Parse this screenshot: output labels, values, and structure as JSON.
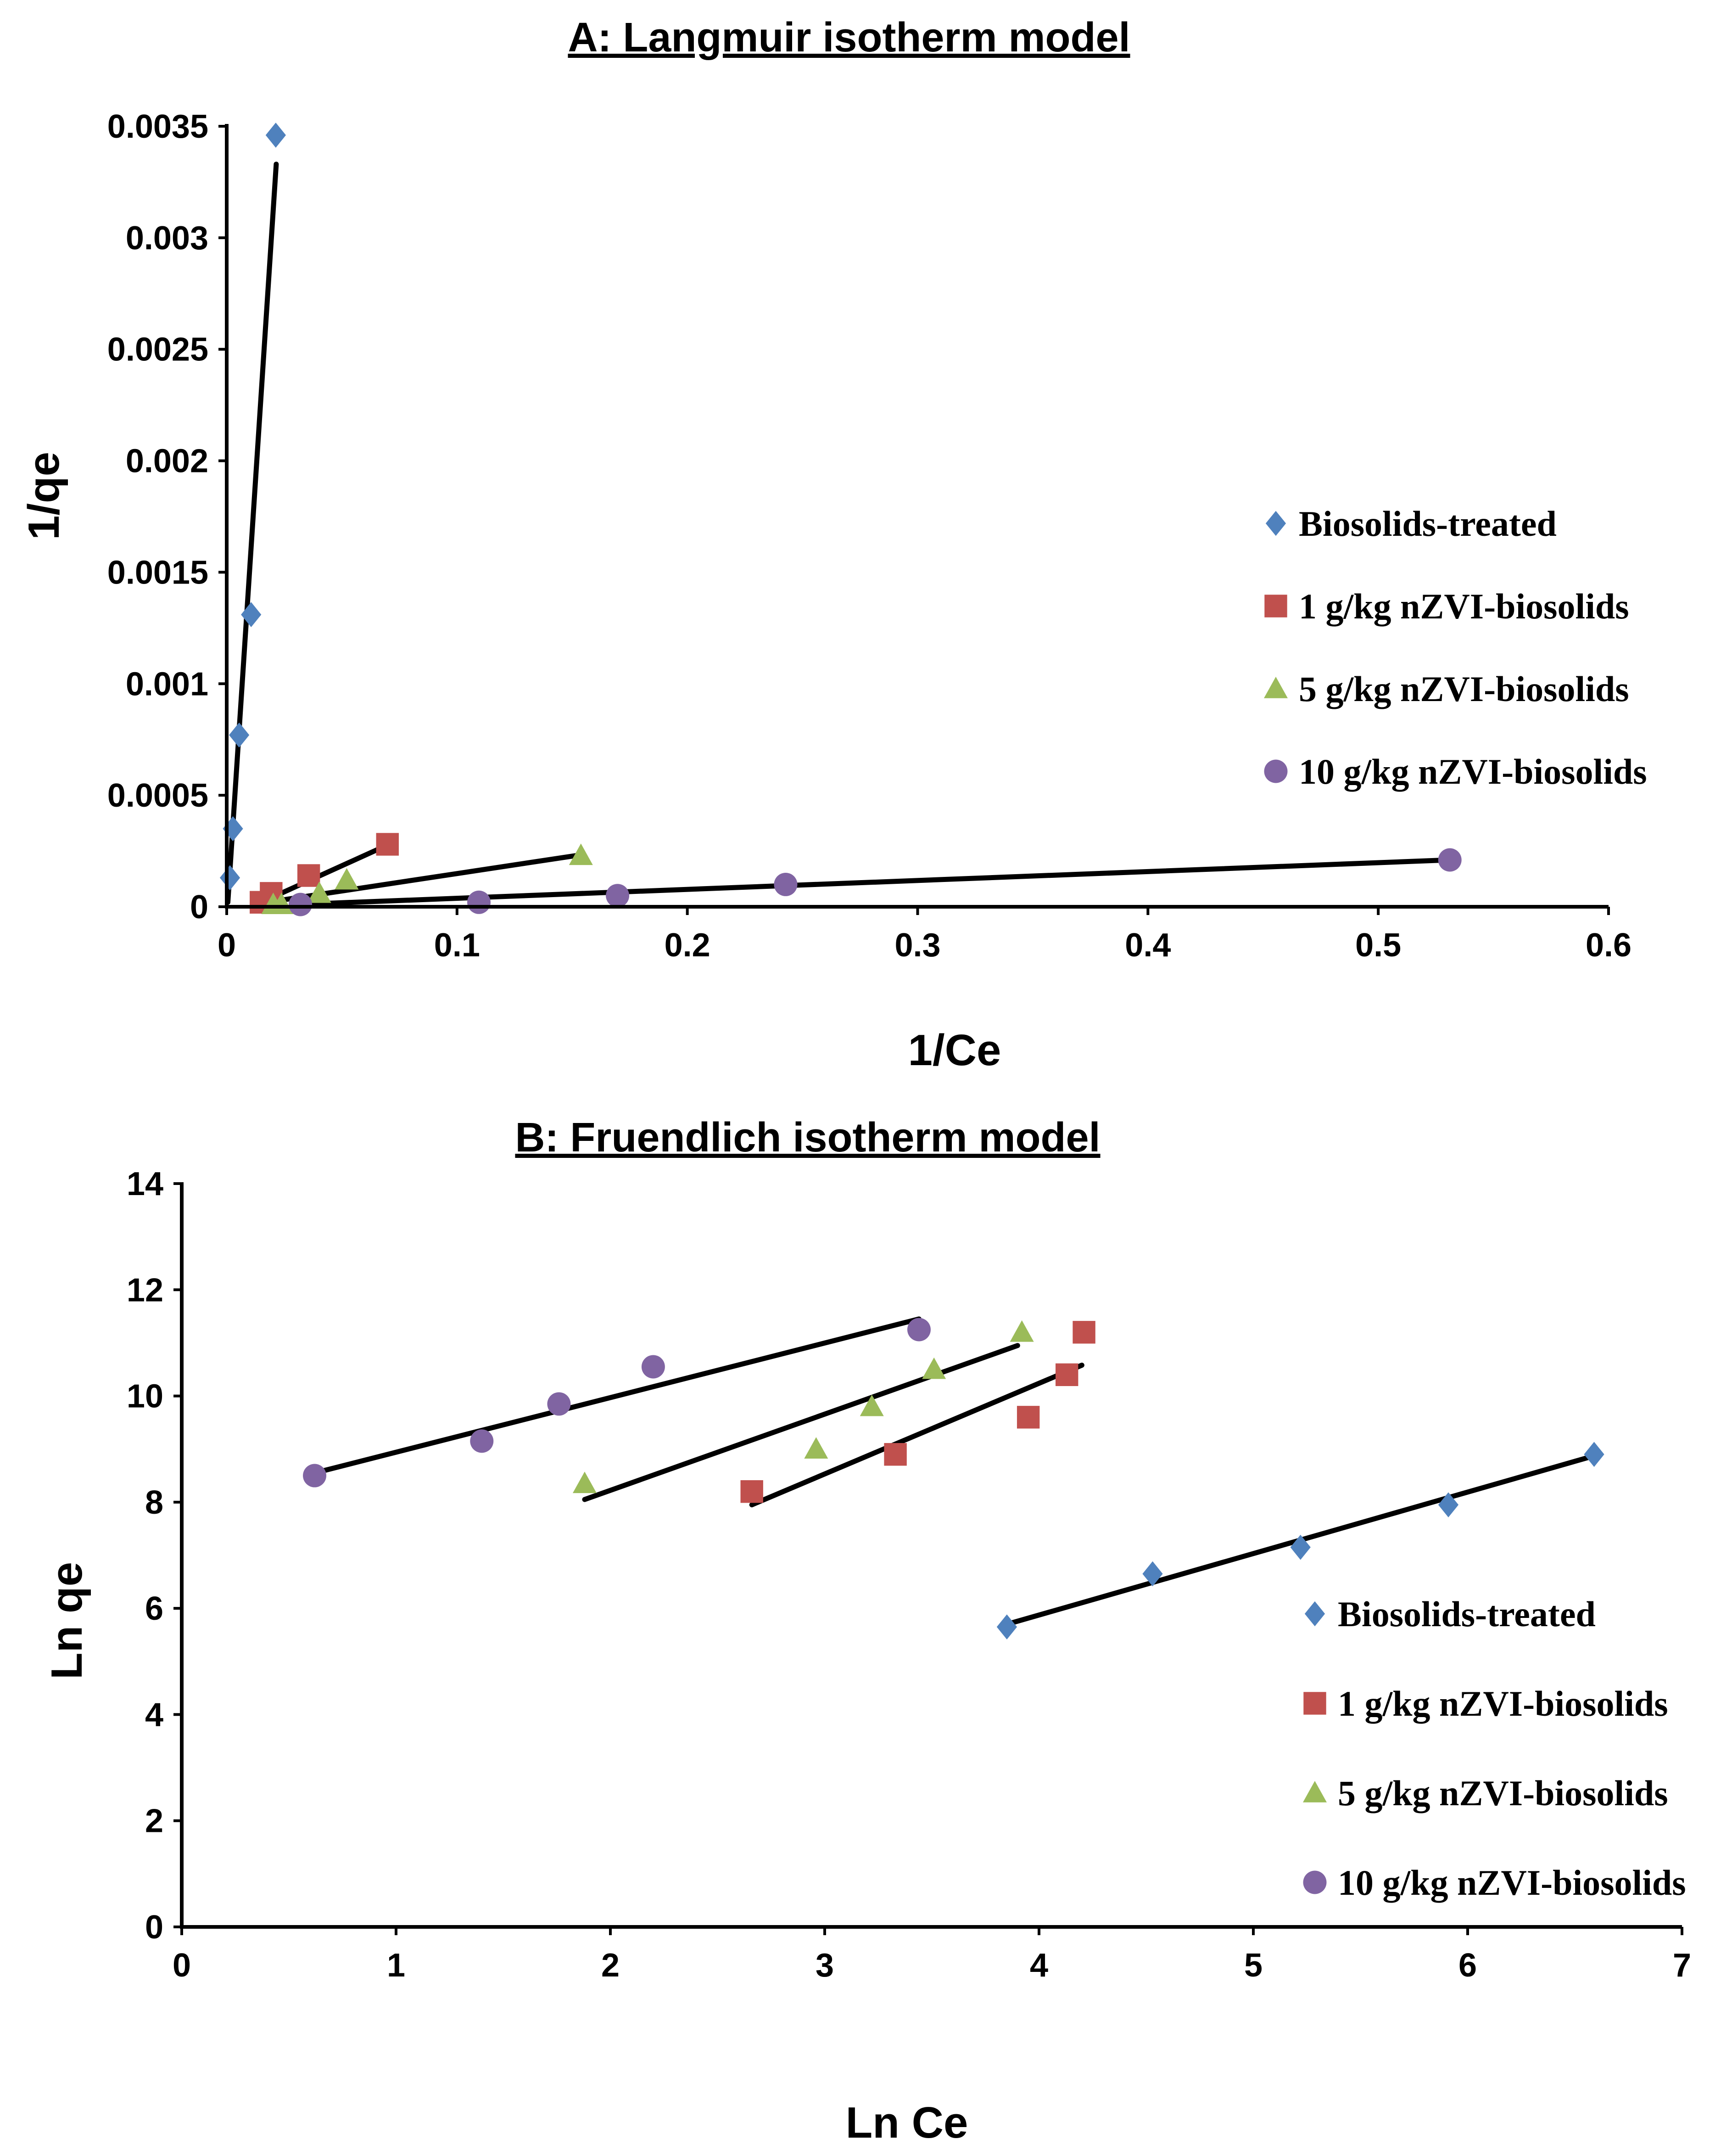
{
  "colors": {
    "biosolids": "#4f81bd",
    "nzvi1": "#c0504d",
    "nzvi5": "#9bbb59",
    "nzvi10": "#8064a2"
  },
  "chart_data": [
    {
      "type": "scatter",
      "title": "A: Langmuir isotherm model",
      "xlabel": "1/Ce",
      "ylabel": "1/qe",
      "xlim": [
        0,
        0.6
      ],
      "ylim": [
        0,
        0.0035
      ],
      "xticks": [
        0,
        0.1,
        0.2,
        0.3,
        0.4,
        0.5,
        0.6
      ],
      "xtick_labels": [
        "0",
        "0.1",
        "0.2",
        "0.3",
        "0.4",
        "0.5",
        "0.6"
      ],
      "yticks": [
        0,
        0.0005,
        0.001,
        0.0015,
        0.002,
        0.0025,
        0.003,
        0.0035
      ],
      "ytick_labels": [
        "0",
        "0.0005",
        "0.001",
        "0.0015",
        "0.002",
        "0.0025",
        "0.003",
        "0.0035"
      ],
      "legend_position": "right",
      "series": [
        {
          "name": "Biosolids-treated",
          "marker": "diamond",
          "color_key": "biosolids",
          "x": [
            0.0014,
            0.0027,
            0.0054,
            0.0106,
            0.0213
          ],
          "y": [
            0.00013,
            0.00035,
            0.00077,
            0.00131,
            0.00346
          ],
          "fit": [
            [
              0.0005,
              2e-05
            ],
            [
              0.0215,
              0.00333
            ]
          ]
        },
        {
          "name": "1 g/kg nZVI-biosolids",
          "marker": "square",
          "color_key": "nzvi1",
          "x": [
            0.0149,
            0.0193,
            0.0356,
            0.0698
          ],
          "y": [
            2e-05,
            6e-05,
            0.00014,
            0.00028
          ],
          "fit": [
            [
              0.015,
              2e-05
            ],
            [
              0.0705,
              0.00028
            ]
          ]
        },
        {
          "name": "5 g/kg nZVI-biosolids",
          "marker": "triangle",
          "color_key": "nzvi5",
          "x": [
            0.0202,
            0.0238,
            0.0402,
            0.0521,
            0.1538
          ],
          "y": [
            1e-05,
            1e-05,
            6e-05,
            0.00012,
            0.00023
          ],
          "fit": [
            [
              0.0175,
              2e-05
            ],
            [
              0.152,
              0.00023
            ]
          ]
        },
        {
          "name": "10 g/kg nZVI-biosolids",
          "marker": "circle",
          "color_key": "nzvi10",
          "x": [
            0.032,
            0.1095,
            0.1697,
            0.2427,
            0.5311
          ],
          "y": [
            1e-05,
            2e-05,
            5e-05,
            0.0001,
            0.00021
          ],
          "fit": [
            [
              0.03,
              1e-05
            ],
            [
              0.531,
              0.00021
            ]
          ]
        }
      ]
    },
    {
      "type": "scatter",
      "title": "B: Fruendlich isotherm model",
      "xlabel": "Ln Ce",
      "ylabel": "Ln qe",
      "xlim": [
        0,
        7
      ],
      "ylim": [
        0,
        14
      ],
      "xticks": [
        0,
        1,
        2,
        3,
        4,
        5,
        6,
        7
      ],
      "xtick_labels": [
        "0",
        "1",
        "2",
        "3",
        "4",
        "5",
        "6",
        "7"
      ],
      "yticks": [
        0,
        2,
        4,
        6,
        8,
        10,
        12,
        14
      ],
      "ytick_labels": [
        "0",
        "2",
        "4",
        "6",
        "8",
        "10",
        "12",
        "14"
      ],
      "legend_position": "bottom-right",
      "series": [
        {
          "name": "Biosolids-treated",
          "marker": "diamond",
          "color_key": "biosolids",
          "x": [
            3.85,
            4.53,
            5.22,
            5.91,
            6.59
          ],
          "y": [
            5.65,
            6.65,
            7.15,
            7.95,
            8.9
          ],
          "fit": [
            [
              3.85,
              5.7
            ],
            [
              6.57,
              8.85
            ]
          ]
        },
        {
          "name": "1 g/kg nZVI-biosolids",
          "marker": "square",
          "color_key": "nzvi1",
          "x": [
            2.66,
            3.33,
            3.95,
            4.13,
            4.21
          ],
          "y": [
            8.2,
            8.9,
            9.6,
            10.4,
            11.2
          ],
          "fit": [
            [
              2.66,
              7.95
            ],
            [
              4.2,
              10.58
            ]
          ]
        },
        {
          "name": "5 g/kg nZVI-biosolids",
          "marker": "triangle",
          "color_key": "nzvi5",
          "x": [
            1.88,
            2.96,
            3.22,
            3.51,
            3.92
          ],
          "y": [
            8.35,
            9.0,
            9.8,
            10.5,
            11.2
          ],
          "fit": [
            [
              1.88,
              8.05
            ],
            [
              3.9,
              10.95
            ]
          ]
        },
        {
          "name": "10 g/kg nZVI-biosolids",
          "marker": "circle",
          "color_key": "nzvi10",
          "x": [
            0.62,
            1.4,
            1.76,
            2.2,
            3.44
          ],
          "y": [
            8.5,
            9.15,
            9.85,
            10.55,
            11.25
          ],
          "fit": [
            [
              0.62,
              8.55
            ],
            [
              3.44,
              11.45
            ]
          ]
        }
      ]
    }
  ]
}
